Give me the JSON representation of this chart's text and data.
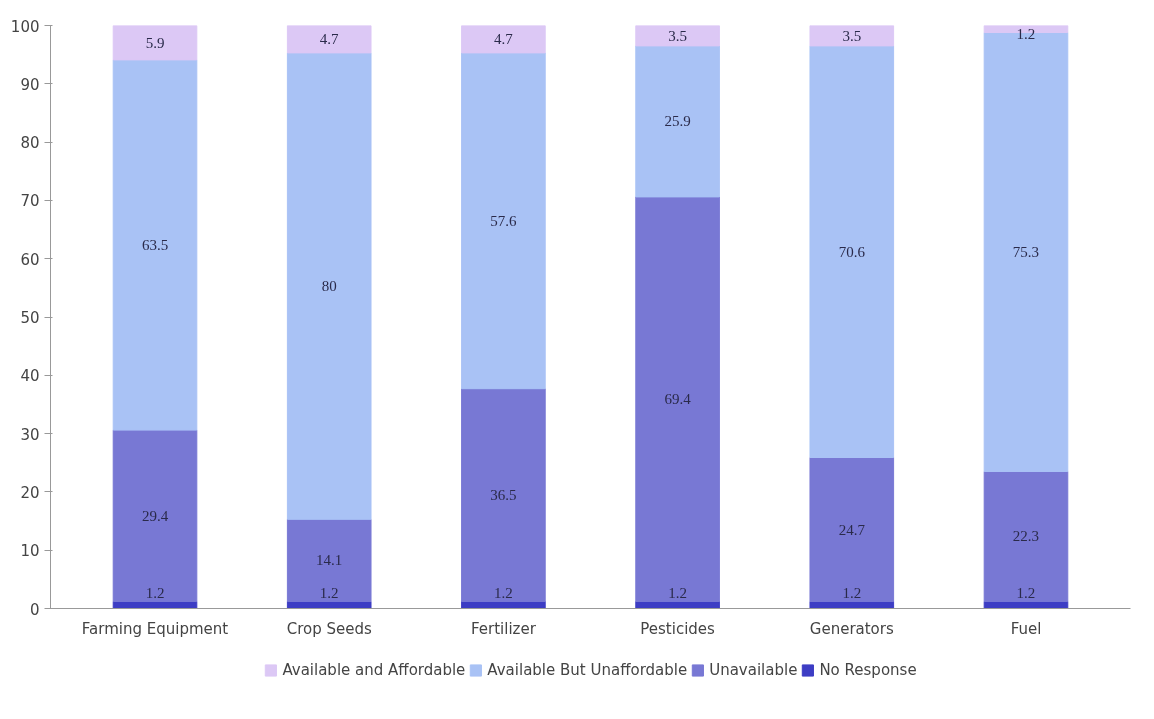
{
  "chart_data": {
    "type": "bar",
    "stacked": true,
    "categories": [
      "Farming Equipment",
      "Crop Seeds",
      "Fertilizer",
      "Pesticides",
      "Generators",
      "Fuel"
    ],
    "series": [
      {
        "name": "No Response",
        "color": "#3d3dc4",
        "values": [
          1.2,
          1.2,
          1.2,
          1.2,
          1.2,
          1.2
        ]
      },
      {
        "name": "Unavailable",
        "color": "#7878d4",
        "values": [
          29.4,
          14.1,
          36.5,
          69.4,
          24.7,
          22.3
        ]
      },
      {
        "name": "Available But Unaffordable",
        "color": "#a9c2f5",
        "values": [
          63.5,
          80,
          57.6,
          25.9,
          70.6,
          75.3
        ]
      },
      {
        "name": "Available and Affordable",
        "color": "#dcc8f5",
        "values": [
          5.9,
          4.7,
          4.7,
          3.5,
          3.5,
          1.2
        ]
      }
    ],
    "ylim": [
      0,
      100
    ],
    "yticks": [
      0,
      10,
      20,
      30,
      40,
      50,
      60,
      70,
      80,
      90,
      100
    ],
    "data_labels": true,
    "grid": false,
    "legend": "bottom"
  }
}
